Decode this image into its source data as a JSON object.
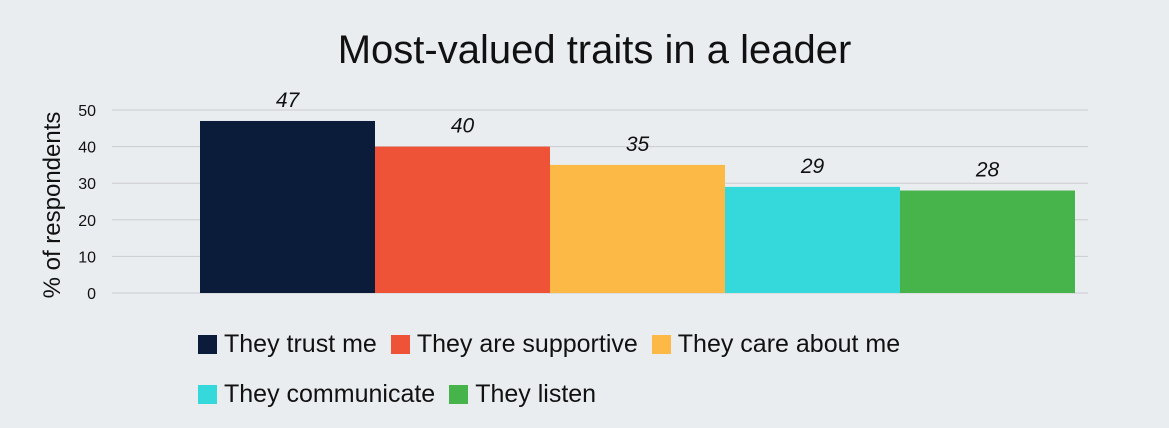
{
  "chart_data": {
    "type": "bar",
    "title": "Most-valued traits in a leader",
    "xlabel": "",
    "ylabel": "% of respondents",
    "ylim": [
      0,
      50
    ],
    "yticks": [
      0,
      10,
      20,
      30,
      40,
      50
    ],
    "grid": true,
    "legend_position": "bottom",
    "series": [
      {
        "name": "They trust me",
        "value": 47,
        "color": "#0b1b3a"
      },
      {
        "name": "They are supportive",
        "value": 40,
        "color": "#ee5337"
      },
      {
        "name": "They care about me",
        "value": 35,
        "color": "#fdb945"
      },
      {
        "name": "They communicate",
        "value": 29,
        "color": "#35d9dc"
      },
      {
        "name": "They listen",
        "value": 28,
        "color": "#47b34b"
      }
    ]
  }
}
